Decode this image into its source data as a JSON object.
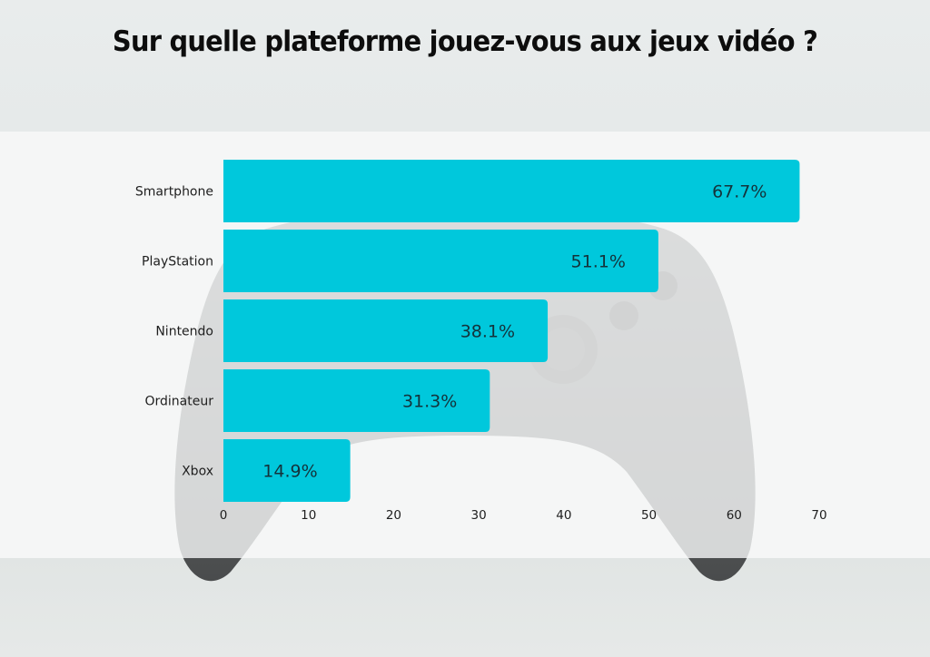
{
  "title": "Sur quelle plateforme jouez-vous aux jeux vidéo ?",
  "colors": {
    "bar": "#00c8dc",
    "title": "#0d0d0d",
    "text": "#1e1e1e"
  },
  "background": {
    "image_subject": "gray game controller (faded)"
  },
  "chart_data": {
    "type": "bar",
    "orientation": "horizontal",
    "title": "Sur quelle plateforme jouez-vous aux jeux vidéo ?",
    "categories": [
      "Smartphone",
      "PlayStation",
      "Nintendo",
      "Ordinateur",
      "Xbox"
    ],
    "values": [
      67.7,
      51.1,
      38.1,
      31.3,
      14.9
    ],
    "value_labels": [
      "67.7%",
      "51.1%",
      "38.1%",
      "31.3%",
      "14.9%"
    ],
    "unit": "%",
    "xlabel": "",
    "ylabel": "",
    "xlim": [
      0,
      70
    ],
    "x_ticks": [
      0,
      10,
      20,
      30,
      40,
      50,
      60,
      70
    ],
    "x_tick_labels": [
      "0",
      "10",
      "20",
      "30",
      "40",
      "50",
      "60",
      "70"
    ],
    "grid": false,
    "legend": "none"
  }
}
